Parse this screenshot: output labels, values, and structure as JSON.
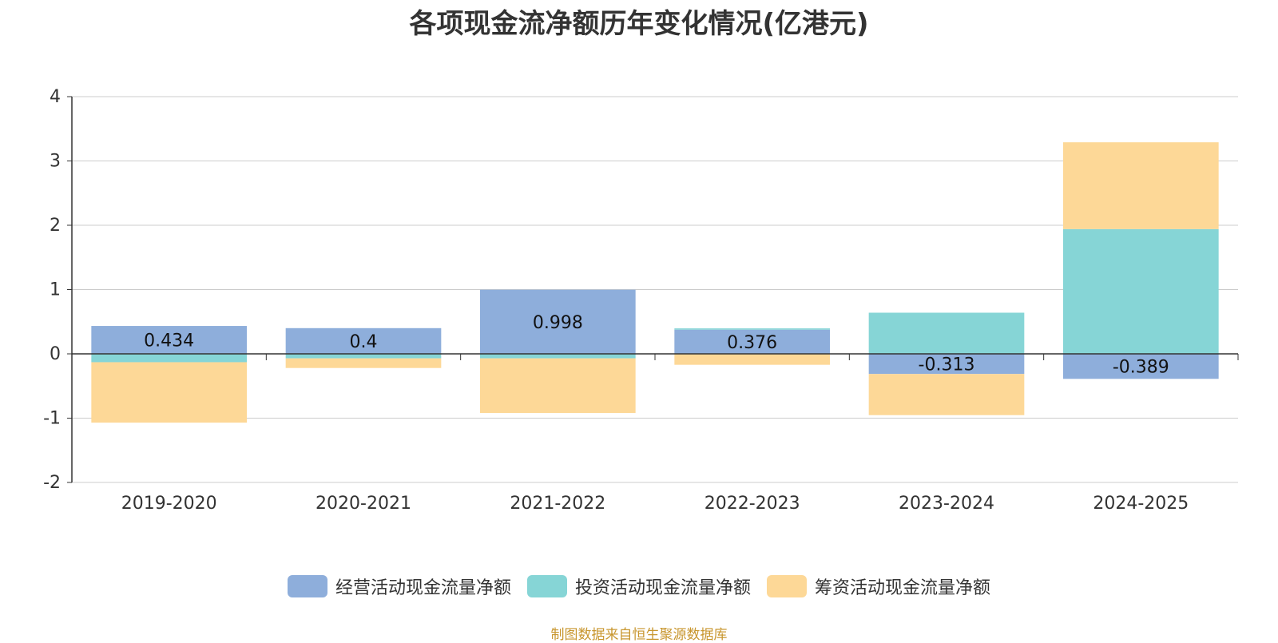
{
  "title": "各项现金流净额历年变化情况(亿港元)",
  "source": "制图数据来自恒生聚源数据库",
  "chart_data": {
    "type": "bar",
    "stacked": true,
    "categories": [
      "2019-2020",
      "2020-2021",
      "2021-2022",
      "2022-2023",
      "2023-2024",
      "2024-2025"
    ],
    "series": [
      {
        "name": "经营活动现金流量净额",
        "color": "#8eaedb",
        "values": [
          0.434,
          0.4,
          0.998,
          0.376,
          -0.313,
          -0.389
        ],
        "labels": [
          "0.434",
          "0.4",
          "0.998",
          "0.376",
          "-0.313",
          "-0.389"
        ]
      },
      {
        "name": "投资活动现金流量净额",
        "color": "#86d5d6",
        "values": [
          -0.13,
          -0.07,
          -0.07,
          0.02,
          0.64,
          1.94
        ]
      },
      {
        "name": "筹资活动现金流量净额",
        "color": "#fdd897",
        "values": [
          -0.94,
          -0.15,
          -0.85,
          -0.17,
          -0.64,
          1.35
        ]
      }
    ],
    "ylim": [
      -2,
      4
    ],
    "yticks": [
      "4",
      "3",
      "2",
      "1",
      "0",
      "-1",
      "-2"
    ],
    "legend_position": "bottom",
    "grid": true
  }
}
